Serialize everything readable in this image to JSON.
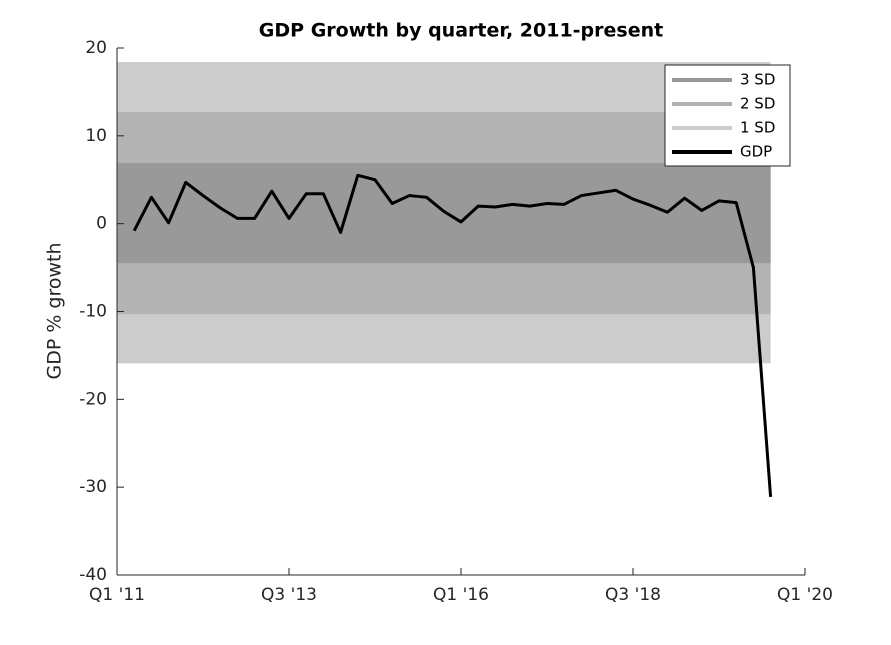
{
  "chart_data": {
    "type": "line",
    "title": "GDP Growth by quarter, 2011-present",
    "ylabel": "GDP % growth",
    "x": [
      1,
      2,
      3,
      4,
      5,
      6,
      7,
      8,
      9,
      10,
      11,
      12,
      13,
      14,
      15,
      16,
      17,
      18,
      19,
      20,
      21,
      22,
      23,
      24,
      25,
      26,
      27,
      28,
      29,
      30,
      31,
      32,
      33,
      34,
      35,
      36,
      37,
      38
    ],
    "series": [
      {
        "name": "GDP",
        "color": "#000000",
        "values": [
          -0.8,
          3.0,
          0.1,
          4.7,
          3.2,
          1.8,
          0.6,
          0.6,
          3.7,
          0.6,
          3.4,
          3.4,
          -1.0,
          5.5,
          5.0,
          2.3,
          3.2,
          3.0,
          1.4,
          0.2,
          2.0,
          1.9,
          2.2,
          2.0,
          2.3,
          2.2,
          3.2,
          3.5,
          3.8,
          2.8,
          2.1,
          1.3,
          2.9,
          1.5,
          2.6,
          2.4,
          -5.0,
          -31.1
        ]
      }
    ],
    "bands": [
      {
        "name": "3 SD",
        "color": "#cccccc",
        "legend_color": "#969696",
        "lower": -15.9,
        "upper": 18.4
      },
      {
        "name": "2 SD",
        "color": "#b3b3b3",
        "legend_color": "#b0b0b0",
        "lower": -10.3,
        "upper": 12.7
      },
      {
        "name": "1 SD",
        "color": "#999999",
        "legend_color": "#cdcdcd",
        "lower": -4.5,
        "upper": 6.9
      }
    ],
    "xlim": [
      0,
      40
    ],
    "xticks": [
      {
        "value": 0,
        "label": "Q1 '11"
      },
      {
        "value": 10,
        "label": "Q3 '13"
      },
      {
        "value": 20,
        "label": "Q1 '16"
      },
      {
        "value": 30,
        "label": "Q3 '18"
      },
      {
        "value": 40,
        "label": "Q1 '20"
      }
    ],
    "ylim": [
      -40,
      20
    ],
    "yticks": [
      -40,
      -30,
      -20,
      -10,
      0,
      10,
      20
    ],
    "grid": false,
    "legend": "upper right"
  }
}
